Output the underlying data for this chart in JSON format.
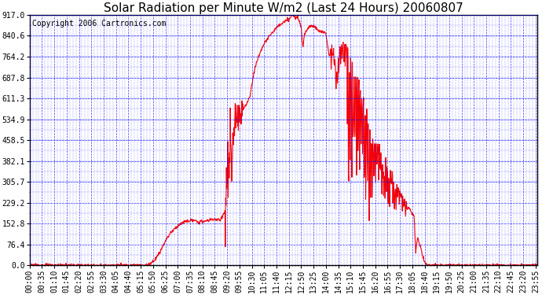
{
  "title": "Solar Radiation per Minute W/m2 (Last 24 Hours) 20060807",
  "copyright_text": "Copyright 2006 Cartronics.com",
  "background_color": "#FFFFFF",
  "plot_background_color": "#FFFFFF",
  "grid_color": "#0000FF",
  "line_color": "#FF0000",
  "title_color": "#000000",
  "y_tick_labels": [
    "0.0",
    "76.4",
    "152.8",
    "229.2",
    "305.7",
    "382.1",
    "458.5",
    "534.9",
    "611.3",
    "687.8",
    "764.2",
    "840.6",
    "917.0"
  ],
  "y_tick_values": [
    0.0,
    76.4,
    152.8,
    229.2,
    305.7,
    382.1,
    458.5,
    534.9,
    611.3,
    687.8,
    764.2,
    840.6,
    917.0
  ],
  "ylim": [
    0.0,
    917.0
  ],
  "x_tick_labels": [
    "00:00",
    "00:35",
    "01:10",
    "01:45",
    "02:20",
    "02:55",
    "03:30",
    "04:05",
    "04:40",
    "05:15",
    "05:50",
    "06:25",
    "07:00",
    "07:35",
    "08:10",
    "08:45",
    "09:20",
    "09:55",
    "10:30",
    "11:05",
    "11:40",
    "12:15",
    "12:50",
    "13:25",
    "14:00",
    "14:35",
    "15:10",
    "15:45",
    "16:20",
    "16:55",
    "17:30",
    "18:05",
    "18:40",
    "19:15",
    "19:50",
    "20:25",
    "21:00",
    "21:35",
    "22:10",
    "22:45",
    "23:20",
    "23:55"
  ],
  "num_points": 1440,
  "peak_value": 917.0,
  "line_width": 0.8,
  "font_size_title": 11,
  "font_size_ticks": 7,
  "font_size_copyright": 7,
  "keypoints_x": [
    0,
    330,
    340,
    355,
    370,
    385,
    400,
    420,
    440,
    460,
    480,
    500,
    520,
    540,
    555,
    560,
    565,
    570,
    575,
    580,
    585,
    590,
    600,
    615,
    625,
    635,
    645,
    660,
    680,
    700,
    720,
    735,
    745,
    755,
    760,
    765,
    770,
    775,
    780,
    790,
    800,
    820,
    840,
    850,
    855,
    860,
    865,
    870,
    875,
    880,
    890,
    900,
    910,
    920,
    930,
    935,
    940,
    945,
    950,
    955,
    960,
    965,
    970,
    980,
    990,
    1000,
    1005,
    1010,
    1015,
    1020,
    1025,
    1030,
    1035,
    1040,
    1050,
    1060,
    1070,
    1080,
    1090,
    1095,
    1100,
    1110,
    1120,
    1130,
    1439
  ],
  "keypoints_y": [
    0,
    0,
    5,
    20,
    50,
    90,
    120,
    145,
    160,
    165,
    158,
    162,
    170,
    165,
    200,
    350,
    310,
    450,
    380,
    490,
    530,
    510,
    560,
    590,
    620,
    700,
    750,
    800,
    840,
    870,
    890,
    900,
    917,
    905,
    910,
    900,
    870,
    800,
    850,
    870,
    880,
    860,
    850,
    760,
    800,
    820,
    760,
    700,
    750,
    800,
    820,
    810,
    800,
    690,
    710,
    680,
    620,
    600,
    650,
    580,
    550,
    500,
    480,
    450,
    460,
    380,
    330,
    400,
    350,
    300,
    380,
    320,
    290,
    310,
    280,
    260,
    230,
    200,
    180,
    50,
    100,
    60,
    10,
    0,
    0
  ]
}
